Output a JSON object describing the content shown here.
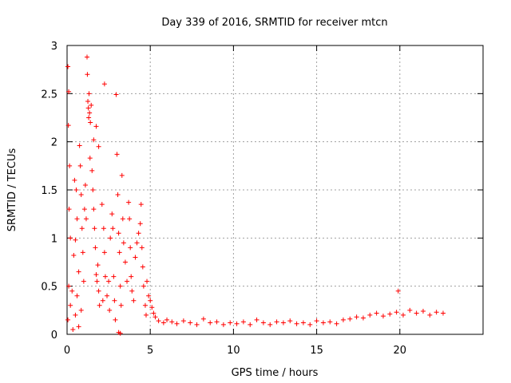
{
  "chart_data": {
    "type": "scatter",
    "title": "Day 339 of 2016, SRMTID for receiver mtcn",
    "xlabel": "GPS time / hours",
    "ylabel": "SRMTID / TECUs",
    "xlim": [
      0,
      25
    ],
    "ylim": [
      0,
      3
    ],
    "xticks": [
      0,
      5,
      10,
      15,
      20
    ],
    "yticks": [
      0,
      0.5,
      1,
      1.5,
      2,
      2.5,
      3
    ],
    "xtick_labels": [
      "0",
      "5",
      "10",
      "15",
      "20"
    ],
    "ytick_labels": [
      "0",
      "0.5",
      "1",
      "1.5",
      "2",
      "2.5",
      "3"
    ],
    "grid": true,
    "marker": "+",
    "color": "#ff0000",
    "series": [
      {
        "name": "mtcn",
        "points": [
          [
            0.05,
            2.78
          ],
          [
            0.1,
            2.52
          ],
          [
            0.08,
            2.17
          ],
          [
            0.15,
            1.75
          ],
          [
            0.12,
            1.3
          ],
          [
            0.2,
            1.0
          ],
          [
            0.1,
            0.5
          ],
          [
            0.3,
            0.45
          ],
          [
            0.2,
            0.3
          ],
          [
            0.05,
            0.15
          ],
          [
            0.4,
            0.82
          ],
          [
            0.5,
            0.98
          ],
          [
            0.45,
            1.6
          ],
          [
            0.55,
            1.5
          ],
          [
            0.6,
            1.2
          ],
          [
            0.35,
            0.05
          ],
          [
            0.5,
            0.2
          ],
          [
            0.7,
            0.65
          ],
          [
            0.6,
            0.4
          ],
          [
            0.75,
            1.96
          ],
          [
            0.8,
            1.75
          ],
          [
            0.85,
            1.45
          ],
          [
            0.9,
            1.1
          ],
          [
            0.95,
            0.85
          ],
          [
            0.7,
            0.08
          ],
          [
            0.85,
            0.25
          ],
          [
            1.0,
            0.55
          ],
          [
            1.05,
            1.3
          ],
          [
            1.1,
            1.55
          ],
          [
            1.15,
            1.2
          ],
          [
            1.2,
            2.88
          ],
          [
            1.22,
            2.7
          ],
          [
            1.25,
            2.42
          ],
          [
            1.28,
            2.35
          ],
          [
            1.3,
            2.25
          ],
          [
            1.32,
            2.5
          ],
          [
            1.35,
            2.3
          ],
          [
            1.4,
            2.2
          ],
          [
            1.45,
            2.38
          ],
          [
            1.38,
            1.83
          ],
          [
            1.5,
            1.7
          ],
          [
            1.55,
            1.5
          ],
          [
            1.6,
            1.3
          ],
          [
            1.65,
            1.1
          ],
          [
            1.7,
            0.9
          ],
          [
            1.75,
            0.62
          ],
          [
            1.8,
            0.55
          ],
          [
            1.85,
            0.72
          ],
          [
            1.9,
            0.45
          ],
          [
            1.95,
            0.3
          ],
          [
            1.6,
            2.02
          ],
          [
            1.75,
            2.16
          ],
          [
            1.9,
            1.95
          ],
          [
            2.1,
            1.35
          ],
          [
            2.2,
            1.1
          ],
          [
            2.25,
            0.85
          ],
          [
            2.3,
            0.6
          ],
          [
            2.15,
            0.35
          ],
          [
            2.4,
            0.4
          ],
          [
            2.5,
            0.55
          ],
          [
            2.25,
            2.6
          ],
          [
            2.55,
            0.25
          ],
          [
            2.6,
            1.0
          ],
          [
            2.7,
            1.25
          ],
          [
            2.75,
            1.1
          ],
          [
            2.8,
            0.6
          ],
          [
            2.85,
            0.35
          ],
          [
            2.9,
            0.15
          ],
          [
            2.95,
            2.49
          ],
          [
            3.0,
            1.87
          ],
          [
            3.05,
            1.45
          ],
          [
            3.1,
            1.05
          ],
          [
            3.15,
            0.85
          ],
          [
            3.2,
            0.5
          ],
          [
            3.25,
            0.3
          ],
          [
            3.1,
            0.02
          ],
          [
            3.2,
            0.01
          ],
          [
            3.3,
            1.65
          ],
          [
            3.35,
            1.2
          ],
          [
            3.4,
            0.95
          ],
          [
            3.5,
            0.75
          ],
          [
            3.6,
            0.55
          ],
          [
            3.7,
            1.37
          ],
          [
            3.75,
            1.2
          ],
          [
            3.8,
            0.9
          ],
          [
            3.85,
            0.6
          ],
          [
            3.9,
            0.45
          ],
          [
            4.0,
            0.35
          ],
          [
            4.1,
            0.8
          ],
          [
            4.2,
            0.95
          ],
          [
            4.3,
            1.05
          ],
          [
            4.4,
            1.15
          ],
          [
            4.45,
            1.35
          ],
          [
            4.5,
            0.9
          ],
          [
            4.55,
            0.7
          ],
          [
            4.6,
            0.5
          ],
          [
            4.7,
            0.3
          ],
          [
            4.75,
            0.2
          ],
          [
            4.8,
            0.55
          ],
          [
            4.9,
            0.4
          ],
          [
            5.0,
            0.35
          ],
          [
            5.1,
            0.28
          ],
          [
            5.2,
            0.22
          ],
          [
            5.3,
            0.18
          ],
          [
            5.5,
            0.14
          ],
          [
            5.8,
            0.12
          ],
          [
            6.0,
            0.15
          ],
          [
            6.3,
            0.13
          ],
          [
            6.6,
            0.11
          ],
          [
            7.0,
            0.14
          ],
          [
            7.4,
            0.12
          ],
          [
            7.8,
            0.1
          ],
          [
            8.2,
            0.16
          ],
          [
            8.6,
            0.12
          ],
          [
            9.0,
            0.13
          ],
          [
            9.4,
            0.1
          ],
          [
            9.8,
            0.12
          ],
          [
            10.2,
            0.11
          ],
          [
            10.6,
            0.13
          ],
          [
            11.0,
            0.1
          ],
          [
            11.4,
            0.15
          ],
          [
            11.8,
            0.12
          ],
          [
            12.2,
            0.1
          ],
          [
            12.6,
            0.13
          ],
          [
            13.0,
            0.12
          ],
          [
            13.4,
            0.14
          ],
          [
            13.8,
            0.11
          ],
          [
            14.2,
            0.12
          ],
          [
            14.6,
            0.1
          ],
          [
            15.0,
            0.14
          ],
          [
            15.4,
            0.12
          ],
          [
            15.8,
            0.13
          ],
          [
            16.2,
            0.11
          ],
          [
            16.6,
            0.15
          ],
          [
            17.0,
            0.16
          ],
          [
            17.4,
            0.18
          ],
          [
            17.8,
            0.17
          ],
          [
            18.2,
            0.2
          ],
          [
            18.6,
            0.22
          ],
          [
            19.0,
            0.19
          ],
          [
            19.4,
            0.21
          ],
          [
            19.8,
            0.23
          ],
          [
            19.9,
            0.45
          ],
          [
            20.2,
            0.2
          ],
          [
            20.6,
            0.25
          ],
          [
            21.0,
            0.22
          ],
          [
            21.4,
            0.24
          ],
          [
            21.8,
            0.2
          ],
          [
            22.2,
            0.23
          ],
          [
            22.6,
            0.22
          ]
        ]
      }
    ]
  }
}
